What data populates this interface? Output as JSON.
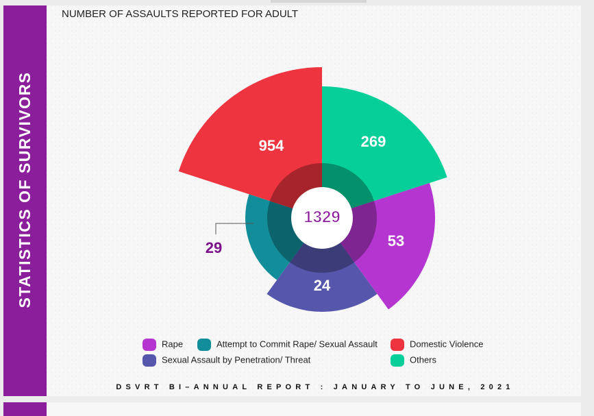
{
  "sidebar_title": "STATISTICS OF SURVIVORS",
  "footer": "DSVRT BI–ANNUAL REPORT : JANUARY TO JUNE, 2021",
  "chart_data": {
    "type": "rose",
    "title": "NUMBER OF ASSAULTS REPORTED FOR ADULT",
    "total": 1329,
    "categories": [
      "Others",
      "Rape",
      "Sexual Assault by Penetration/ Threat",
      "Attempt to Commit Rape/ Sexual Assault",
      "Domestic Violence"
    ],
    "values": [
      269,
      53,
      24,
      29,
      954
    ],
    "colors": [
      "#06cf9a",
      "#b535d0",
      "#5657ac",
      "#128e9b",
      "#ee343e"
    ]
  }
}
